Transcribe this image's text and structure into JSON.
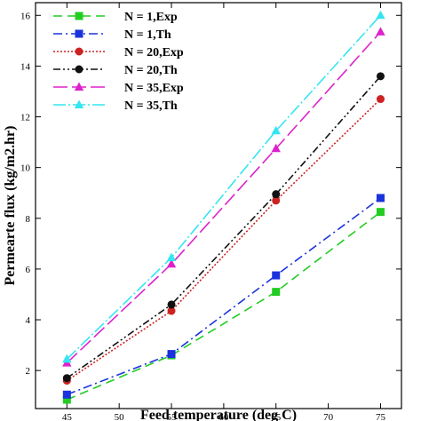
{
  "chart_data": {
    "type": "line",
    "xlabel": "Feed temperature (deg C)",
    "ylabel": "Permearte flux (kg/m2.hr)",
    "xlim": [
      42,
      77
    ],
    "ylim": [
      0.5,
      16.5
    ],
    "xticks": [
      45,
      50,
      55,
      60,
      65,
      70,
      75
    ],
    "yticks": [
      2,
      4,
      6,
      8,
      10,
      12,
      14,
      16
    ],
    "x": [
      45,
      55,
      65,
      75
    ],
    "grid": false,
    "legend_position": "top-left",
    "series": [
      {
        "name": "N = 1,Exp",
        "values": [
          0.85,
          2.6,
          5.1,
          8.25
        ],
        "color": "#22cc22",
        "dash": "10,6",
        "marker": "square"
      },
      {
        "name": "N = 1,Th",
        "values": [
          1.05,
          2.65,
          5.75,
          8.8
        ],
        "color": "#1a33dd",
        "dash": "10,4,2,4",
        "marker": "square"
      },
      {
        "name": "N = 20,Exp",
        "values": [
          1.6,
          4.35,
          8.7,
          12.7
        ],
        "color": "#cc2222",
        "dash": "2,2",
        "marker": "circle"
      },
      {
        "name": "N = 20,Th",
        "values": [
          1.7,
          4.6,
          8.95,
          13.6
        ],
        "color": "#111111",
        "dash": "8,3,2,3,2,3",
        "marker": "circle"
      },
      {
        "name": "N = 35,Exp",
        "values": [
          2.3,
          6.2,
          10.75,
          15.35
        ],
        "color": "#dd22cc",
        "dash": "16,5",
        "marker": "triangle"
      },
      {
        "name": "N = 35,Th",
        "values": [
          2.45,
          6.45,
          11.45,
          16.0
        ],
        "color": "#33e6f0",
        "dash": "14,3,2,3",
        "marker": "triangle"
      }
    ]
  }
}
